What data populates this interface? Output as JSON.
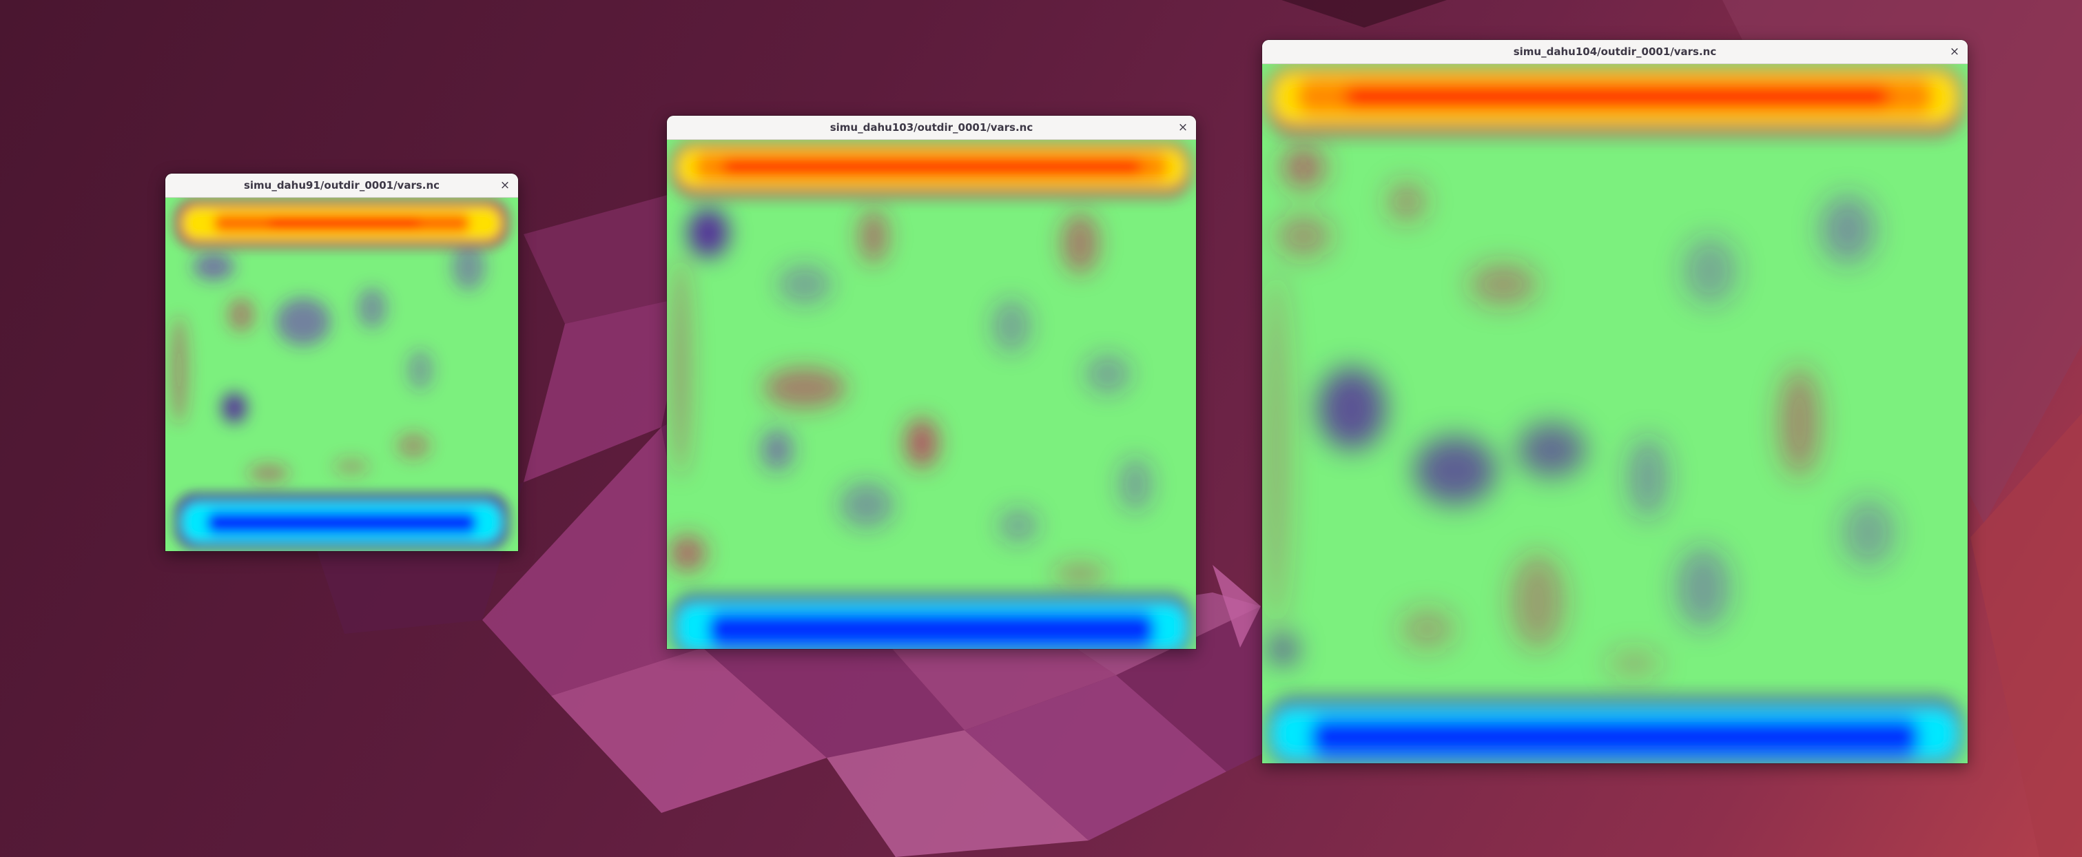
{
  "desktop": {
    "background": [
      "#4a1630",
      "#6e2447",
      "#b3404c"
    ]
  },
  "windows": [
    {
      "title": "simu_dahu91/outdir_0001/vars.nc",
      "close_icon": "×",
      "colors": {
        "background": "#7cf07e",
        "hot": "#ff2a00",
        "warm": "#ffe000",
        "rim": "#b01060",
        "cold": "#0030ff",
        "cool": "#00e8ff",
        "cold_rim": "#4a00a0",
        "violet": "#6a2ab8",
        "crimson": "#c0285a"
      }
    },
    {
      "title": "simu_dahu103/outdir_0001/vars.nc",
      "close_icon": "×",
      "colors": {
        "background": "#7cf07e",
        "hot": "#ff2a00",
        "warm": "#ffe000",
        "rim": "#b01060",
        "cold": "#0030ff",
        "cool": "#00e8ff",
        "cold_rim": "#4a00a0",
        "violet": "#6a2ab8",
        "crimson": "#c0285a"
      }
    },
    {
      "title": "simu_dahu104/outdir_0001/vars.nc",
      "close_icon": "×",
      "colors": {
        "background": "#7cf07e",
        "hot": "#ff2a00",
        "warm": "#ffe000",
        "rim": "#b01060",
        "cold": "#0030ff",
        "cool": "#00e8ff",
        "cold_rim": "#4a00a0",
        "violet": "#6a2ab8",
        "crimson": "#c0285a"
      }
    }
  ]
}
